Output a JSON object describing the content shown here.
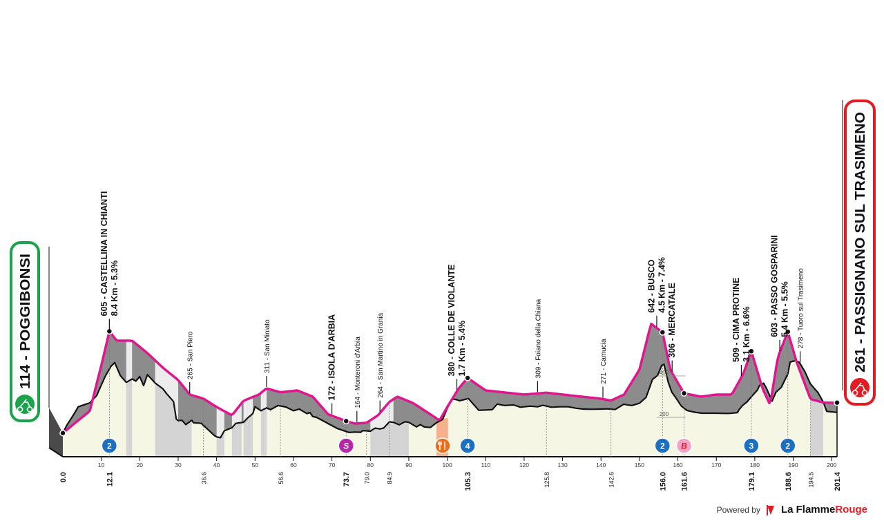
{
  "chart_data": {
    "type": "area",
    "title": "",
    "xlim": [
      0,
      201.4
    ],
    "start": {
      "label": "114 - POGGIBONSI",
      "color": "#1aa34a"
    },
    "finish": {
      "label": "261 - PASSIGNANO SUL TRASIMENO",
      "color": "#e31b23"
    },
    "elevation_ticks": [
      "200",
      "400"
    ],
    "route": {
      "x": [
        0,
        3,
        7,
        10,
        12.1,
        14,
        18,
        22,
        26,
        30,
        33,
        36.6,
        40,
        44,
        47,
        51,
        53,
        56.6,
        61,
        65,
        69,
        73.7,
        76,
        79,
        82,
        84.9,
        87,
        91,
        96,
        98,
        100,
        103,
        105.3,
        110,
        115,
        120,
        125.8,
        130,
        135,
        140,
        142.6,
        146,
        150,
        153,
        156,
        158,
        161.6,
        166,
        170,
        174,
        177,
        179.1,
        182,
        184,
        186,
        188.6,
        191,
        194.5,
        198,
        201.4
      ],
      "ele": [
        114,
        160,
        220,
        440,
        605,
        560,
        560,
        500,
        430,
        370,
        300,
        280,
        240,
        200,
        270,
        300,
        330,
        311,
        320,
        290,
        205,
        172,
        160,
        164,
        200,
        264,
        290,
        260,
        200,
        175,
        240,
        330,
        380,
        320,
        310,
        300,
        309,
        300,
        290,
        280,
        271,
        300,
        420,
        642,
        600,
        420,
        306,
        290,
        300,
        300,
        400,
        509,
        330,
        250,
        480,
        603,
        450,
        278,
        261,
        261
      ]
    },
    "mountain_upper": {
      "x": [
        0,
        1,
        3,
        4,
        7,
        8.8,
        9.5,
        11,
        12.5,
        13.5,
        15,
        16.5,
        18,
        19,
        20,
        21,
        22,
        24,
        26,
        27,
        28.8,
        29.5,
        30,
        31,
        32,
        33.5,
        34,
        36,
        39.5,
        40,
        41,
        42,
        44,
        45,
        46.5,
        47,
        48,
        49.4,
        50,
        51.5,
        53,
        54,
        56,
        58,
        60,
        61.5,
        63.5,
        64.3,
        65,
        66,
        71.3,
        74.5,
        75.8,
        77.5,
        78,
        79,
        80,
        80.5,
        81.3,
        82.5,
        83.5,
        85,
        85.5,
        86,
        87.5,
        89,
        90,
        92,
        93,
        94,
        95.6,
        97.2,
        98.8,
        99.9,
        101.2,
        102.5,
        103.2,
        105.5,
        108.2,
        111.7,
        113,
        115,
        117.3,
        119,
        121.6,
        123.5,
        124.9,
        127.1,
        129.3,
        131.5,
        133.5,
        135.4,
        137.6,
        140.2,
        141.6,
        142.2,
        143.7,
        145.9,
        148,
        150,
        151.7,
        153.4,
        154.7,
        155.8,
        156.4,
        157.5,
        158.4,
        159.6,
        160.9,
        162.4,
        164.3,
        166.2,
        169.9,
        172.1,
        173.3,
        174.6,
        175.5,
        175.9,
        176.8,
        178,
        179.2,
        180.7,
        181.2,
        182.3,
        183.1,
        184.5,
        185.5,
        186.9,
        188.6,
        189.2,
        190.7,
        191.6,
        193,
        194.5,
        196.5,
        197.8,
        198.7,
        201.4
      ],
      "ele": [
        114,
        151,
        209,
        241,
        260,
        295,
        325,
        387,
        436,
        454,
        390,
        359,
        375,
        365,
        387,
        343,
        396,
        356,
        328,
        304,
        266,
        182,
        174,
        176,
        155,
        176,
        164,
        161,
        101,
        96,
        92,
        125,
        140,
        161,
        165,
        166,
        186,
        208,
        241,
        222,
        236,
        227,
        247,
        240,
        222,
        230,
        208,
        213,
        194,
        190,
        137,
        117,
        119,
        118,
        126,
        125,
        123,
        130,
        138,
        134,
        139,
        169,
        167,
        166,
        154,
        169,
        166,
        144,
        155,
        144,
        141,
        164,
        180,
        229,
        279,
        275,
        270,
        281,
        224,
        227,
        254,
        247,
        250,
        239,
        244,
        241,
        248,
        239,
        241,
        241,
        234,
        230,
        229,
        230,
        231,
        230,
        228,
        253,
        247,
        258,
        286,
        373,
        392,
        441,
        446,
        358,
        312,
        281,
        244,
        223,
        215,
        210,
        210,
        209,
        209,
        211,
        213,
        227,
        247,
        265,
        291,
        322,
        343,
        355,
        328,
        268,
        311,
        335,
        400,
        457,
        464,
        455,
        412,
        351,
        308,
        264,
        219,
        214,
        212,
        114
      ]
    },
    "ticks_every_10": [
      "10",
      "20",
      "30",
      "40",
      "50",
      "60",
      "70",
      "80",
      "90",
      "100",
      "110",
      "120",
      "130",
      "140",
      "150",
      "160",
      "170",
      "180",
      "190",
      "200"
    ],
    "km_marks": [
      {
        "km": 0,
        "label": "0.0",
        "bold": true
      },
      {
        "km": 12.1,
        "label": "12.1",
        "bold": true
      },
      {
        "km": 36.6,
        "label": "36.6",
        "bold": false
      },
      {
        "km": 56.6,
        "label": "56.6",
        "bold": false
      },
      {
        "km": 73.7,
        "label": "73.7",
        "bold": true
      },
      {
        "km": 79.0,
        "label": "79.0",
        "bold": false
      },
      {
        "km": 84.9,
        "label": "84.9",
        "bold": false
      },
      {
        "km": 105.3,
        "label": "105.3",
        "bold": true
      },
      {
        "km": 125.8,
        "label": "125.8",
        "bold": false
      },
      {
        "km": 142.6,
        "label": "142.6",
        "bold": false
      },
      {
        "km": 156.0,
        "label": "156.0",
        "bold": true
      },
      {
        "km": 161.6,
        "label": "161.6",
        "bold": true
      },
      {
        "km": 179.1,
        "label": "179.1",
        "bold": true
      },
      {
        "km": 188.6,
        "label": "188.6",
        "bold": true
      },
      {
        "km": 194.5,
        "label": "194.5",
        "bold": false
      },
      {
        "km": 201.4,
        "label": "201.4",
        "bold": true
      }
    ],
    "places": [
      {
        "km": 12.1,
        "ele": 605,
        "lines": [
          "605 - CASTELLINA IN CHIANTI",
          "8.4 Km - 5.3%"
        ],
        "type": "climb"
      },
      {
        "km": 33,
        "ele": 265,
        "lines": [
          "265 - San Piero"
        ],
        "type": "town"
      },
      {
        "km": 53,
        "ele": 311,
        "lines": [
          "311 - San Miniato"
        ],
        "type": "town"
      },
      {
        "km": 70,
        "ele": 172,
        "lines": [
          "172 - ISOLA D'ARBIA"
        ],
        "type": "major"
      },
      {
        "km": 76.5,
        "ele": 164,
        "lines": [
          "164 - Monteroni d'Arbia"
        ],
        "type": "town"
      },
      {
        "km": 82.5,
        "ele": 264,
        "lines": [
          "264 - San Martino in Grania"
        ],
        "type": "town"
      },
      {
        "km": 102.5,
        "ele": 380,
        "lines": [
          "380 - COLLE DE VIOLANTE",
          "1.7 Km - 5.4%"
        ],
        "type": "climb"
      },
      {
        "km": 123.5,
        "ele": 309,
        "lines": [
          "309 - Foiano della Chiana"
        ],
        "type": "town"
      },
      {
        "km": 140.5,
        "ele": 271,
        "lines": [
          "271 - Camucia"
        ],
        "type": "town"
      },
      {
        "km": 154.5,
        "ele": 642,
        "lines": [
          "642 - BUSCO",
          "4.5 Km - 7.4%"
        ],
        "type": "climb"
      },
      {
        "km": 158.5,
        "ele": 306,
        "lines": [
          "306 - MERCATALE"
        ],
        "type": "major"
      },
      {
        "km": 176.5,
        "ele": 509,
        "lines": [
          "509 - CIMA PROTINE",
          "3.1 Km - 6.6%"
        ],
        "type": "climb"
      },
      {
        "km": 186.5,
        "ele": 603,
        "lines": [
          "603 - PASSO GOSPARINI",
          "5.4 Km - 5.5%"
        ],
        "type": "climb"
      },
      {
        "km": 191.8,
        "ele": 278,
        "lines": [
          "278 - Tuoro sul Trasimeno"
        ],
        "type": "town"
      }
    ],
    "badges": [
      {
        "km": 12.1,
        "text": "2",
        "kind": "kom"
      },
      {
        "km": 73.7,
        "text": "S",
        "kind": "sprint"
      },
      {
        "km": 98.8,
        "text": "",
        "kind": "feed"
      },
      {
        "km": 105.3,
        "text": "4",
        "kind": "kom"
      },
      {
        "km": 156.0,
        "text": "2",
        "kind": "kom"
      },
      {
        "km": 161.6,
        "text": "B",
        "kind": "bonus"
      },
      {
        "km": 179.1,
        "text": "3",
        "kind": "kom"
      },
      {
        "km": 188.6,
        "text": "2",
        "kind": "kom"
      }
    ],
    "gravel_sectors_km": [
      [
        16.5,
        18
      ],
      [
        24,
        33.5
      ],
      [
        40,
        42
      ],
      [
        44,
        46.5
      ],
      [
        47,
        49.4
      ],
      [
        51.5,
        53
      ],
      [
        80,
        90
      ],
      [
        194.5,
        197.8
      ]
    ],
    "feed_zone_km": [
      97.2,
      100.2
    ],
    "colors": {
      "route_line": "#e0168e",
      "mountain_fill": "#8c8c8c",
      "ground_fill": "#f6f6e5",
      "gravel_fill": "#d4d4d4",
      "kom_badge": "#1d6fc2",
      "sprint_badge": "#b526a8",
      "bonus_badge": "#f4a3c8",
      "feed_badge": "#f06c1a",
      "feed_zone": "#f6b08b",
      "start": "#1aa34a",
      "finish": "#e31b23"
    }
  },
  "footer": {
    "powered_by": "Powered by",
    "brand_a": "La Flamme",
    "brand_b": "Rouge"
  }
}
